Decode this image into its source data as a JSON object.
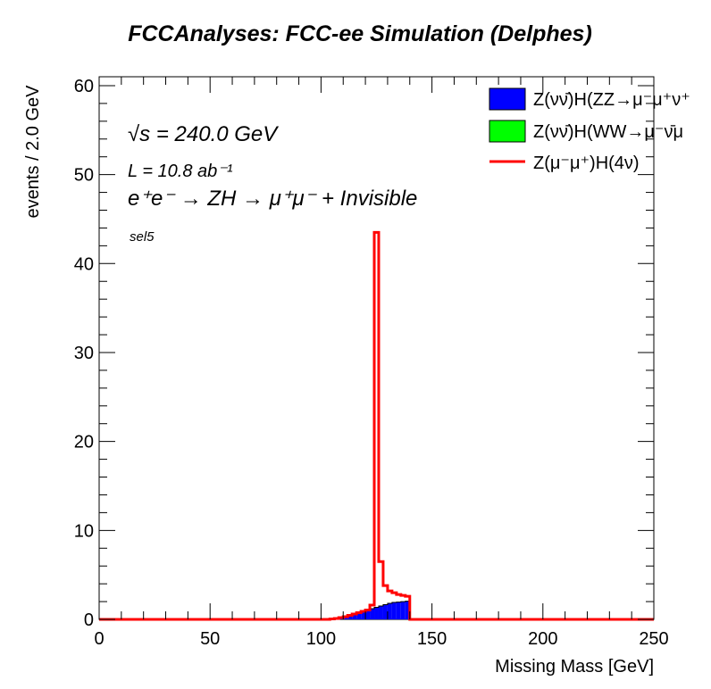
{
  "chart_data": {
    "type": "histogram",
    "title": "FCCAnalyses: FCC-ee Simulation (Delphes)",
    "xlabel": "Missing Mass [GeV]",
    "ylabel": "events / 2.0 GeV",
    "xlim": [
      0,
      250
    ],
    "ylim": [
      0,
      61
    ],
    "x_ticks": [
      0,
      50,
      100,
      150,
      200,
      250
    ],
    "y_ticks": [
      0,
      10,
      20,
      30,
      40,
      50,
      60
    ],
    "bin_width": 2.0,
    "bin_edges_start": 0,
    "grid": false,
    "legend_position": "top-right",
    "annotations": {
      "sqrt_s": "√s = 240.0 GeV",
      "lumi": "L = 10.8 ab⁻¹",
      "process": "e⁺e⁻ → ZH → μ⁺μ⁻ + Invisible",
      "selection": "sel5"
    },
    "series": [
      {
        "name": "Z(νν̄)H(ZZ→μ⁻μ⁺ν⁺",
        "style": "filled",
        "color": "#0000ff",
        "bins_start": 104,
        "values": [
          0.05,
          0.1,
          0.2,
          0.3,
          0.45,
          0.6,
          0.75,
          0.9,
          1.05,
          1.2,
          1.35,
          1.5,
          1.65,
          1.8,
          1.9,
          1.95,
          2.0,
          2.05
        ]
      },
      {
        "name": "Z(νν̄)H(WW→μ⁻ν̄μ",
        "style": "filled",
        "color": "#00ff00",
        "bins_start": 104,
        "values": [
          0,
          0,
          0,
          0,
          0,
          0,
          0,
          0,
          0,
          0,
          0,
          0,
          0,
          0,
          0,
          0,
          0,
          0
        ]
      },
      {
        "name": "Z(μ⁻μ⁺)H(4ν)",
        "style": "line",
        "color": "#ff0000",
        "bins_start": 104,
        "values": [
          0.05,
          0.1,
          0.2,
          0.3,
          0.45,
          0.6,
          0.75,
          0.9,
          1.05,
          1.6,
          43.5,
          6.5,
          3.8,
          3.2,
          3.0,
          2.8,
          2.7,
          2.6
        ]
      }
    ],
    "colors": {
      "frame": "#000000"
    }
  }
}
